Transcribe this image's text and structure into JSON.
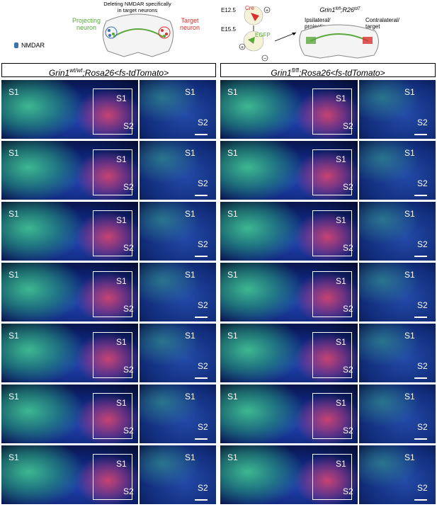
{
  "schematic": {
    "title_line1": "Deleting NMDAR specifically",
    "title_line2": "in target neurons",
    "projecting": [
      "Projecting",
      "neuron"
    ],
    "target": [
      "Target",
      "neuron"
    ],
    "nmdar": "NMDAR",
    "e125": "E12.5",
    "e155": "E15.5",
    "cre": "Cre",
    "egfp": "EGFP",
    "genotype": "Grin1",
    "genotype_sup": "fl/fl",
    "genotype_rest": ";R26",
    "genotype_sup2": "tdT",
    "ipsi": [
      "Ipsilateral/",
      "projecting"
    ],
    "contra": [
      "Contralateral/",
      "target"
    ],
    "plus": "+",
    "minus": "−"
  },
  "headers": {
    "left_gene": "Grin1",
    "left_sup": "wt/wt",
    "left_rest": ";Rosa26<fs-tdTomato>",
    "right_gene": "Grin1",
    "right_sup": "fl/fl",
    "right_rest": ";Rosa26<fs-tdTomato>"
  },
  "labels": {
    "s1": "S1",
    "s2": "S2"
  },
  "colors": {
    "green": "#46d296",
    "red": "#e6466e",
    "blue": "#1e3fa8"
  }
}
